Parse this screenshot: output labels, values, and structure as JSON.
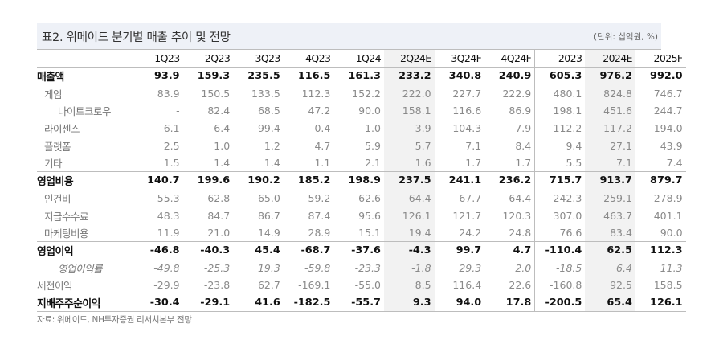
{
  "title": "표2. 위메이드 분기별 매출 추이 및 전망",
  "unit": "(단위: 십억원, %)",
  "columns": [
    "1Q23",
    "2Q23",
    "3Q23",
    "4Q23",
    "1Q24",
    "2Q24E",
    "3Q24F",
    "4Q24F",
    "2023",
    "2024E",
    "2025F"
  ],
  "shaded_columns": [
    "2Q24E",
    "2024E"
  ],
  "rows": [
    {
      "label": "매출액",
      "style": "major",
      "indent": 0,
      "values": [
        "93.9",
        "159.3",
        "235.5",
        "116.5",
        "161.3",
        "233.2",
        "340.8",
        "240.9",
        "605.3",
        "976.2",
        "992.0"
      ]
    },
    {
      "label": "게임",
      "style": "minor",
      "indent": 1,
      "values": [
        "83.9",
        "150.5",
        "133.5",
        "112.3",
        "152.2",
        "222.0",
        "227.7",
        "222.9",
        "480.1",
        "824.8",
        "746.7"
      ]
    },
    {
      "label": "나이트크로우",
      "style": "minor",
      "indent": 2,
      "values": [
        "-",
        "82.4",
        "68.5",
        "47.2",
        "90.0",
        "158.1",
        "116.6",
        "86.9",
        "198.1",
        "451.6",
        "244.7"
      ]
    },
    {
      "label": "라이센스",
      "style": "minor",
      "indent": 1,
      "values": [
        "6.1",
        "6.4",
        "99.4",
        "0.4",
        "1.0",
        "3.9",
        "104.3",
        "7.9",
        "112.2",
        "117.2",
        "194.0"
      ]
    },
    {
      "label": "플랫폼",
      "style": "minor",
      "indent": 1,
      "values": [
        "2.5",
        "1.0",
        "1.2",
        "4.7",
        "5.9",
        "5.7",
        "7.1",
        "8.4",
        "9.4",
        "27.1",
        "43.9"
      ]
    },
    {
      "label": "기타",
      "style": "minor",
      "indent": 1,
      "values": [
        "1.5",
        "1.4",
        "1.4",
        "1.1",
        "2.1",
        "1.6",
        "1.7",
        "1.7",
        "5.5",
        "7.1",
        "7.4"
      ]
    },
    {
      "label": "영업비용",
      "style": "major",
      "indent": 0,
      "values": [
        "140.7",
        "199.6",
        "190.2",
        "185.2",
        "198.9",
        "237.5",
        "241.1",
        "236.2",
        "715.7",
        "913.7",
        "879.7"
      ]
    },
    {
      "label": "인건비",
      "style": "minor",
      "indent": 1,
      "values": [
        "55.3",
        "62.8",
        "65.0",
        "59.2",
        "62.6",
        "64.4",
        "67.7",
        "64.4",
        "242.3",
        "259.1",
        "278.9"
      ]
    },
    {
      "label": "지급수수료",
      "style": "minor",
      "indent": 1,
      "values": [
        "48.3",
        "84.7",
        "86.7",
        "87.4",
        "95.6",
        "126.1",
        "121.7",
        "120.3",
        "307.0",
        "463.7",
        "401.1"
      ]
    },
    {
      "label": "마케팅비용",
      "style": "minor",
      "indent": 1,
      "values": [
        "11.9",
        "21.0",
        "14.9",
        "28.9",
        "15.1",
        "19.4",
        "24.2",
        "24.8",
        "76.6",
        "83.4",
        "90.0"
      ]
    },
    {
      "label": "영업이익",
      "style": "major",
      "indent": 0,
      "values": [
        "-46.8",
        "-40.3",
        "45.4",
        "-68.7",
        "-37.6",
        "-4.3",
        "99.7",
        "4.7",
        "-110.4",
        "62.5",
        "112.3"
      ]
    },
    {
      "label": "영업이익률",
      "style": "minor-italic",
      "indent": 2,
      "values": [
        "-49.8",
        "-25.3",
        "19.3",
        "-59.8",
        "-23.3",
        "-1.8",
        "29.3",
        "2.0",
        "-18.5",
        "6.4",
        "11.3"
      ]
    },
    {
      "label": "세전이익",
      "style": "minor",
      "indent": 0,
      "values": [
        "-29.9",
        "-23.8",
        "62.7",
        "-169.1",
        "-55.0",
        "8.5",
        "116.4",
        "22.6",
        "-160.8",
        "92.5",
        "158.5"
      ]
    },
    {
      "label": "지배주주순이익",
      "style": "major",
      "indent": 0,
      "values": [
        "-30.4",
        "-29.1",
        "41.6",
        "-182.5",
        "-55.7",
        "9.3",
        "94.0",
        "17.8",
        "-200.5",
        "65.4",
        "126.1"
      ]
    }
  ],
  "source": "자료: 위메이드, NH투자증권 리서치본부 전망",
  "colors": {
    "title_bg": "#eef1f7",
    "shade_bg": "#f2f2f2",
    "rule": "#bdbdbd"
  }
}
